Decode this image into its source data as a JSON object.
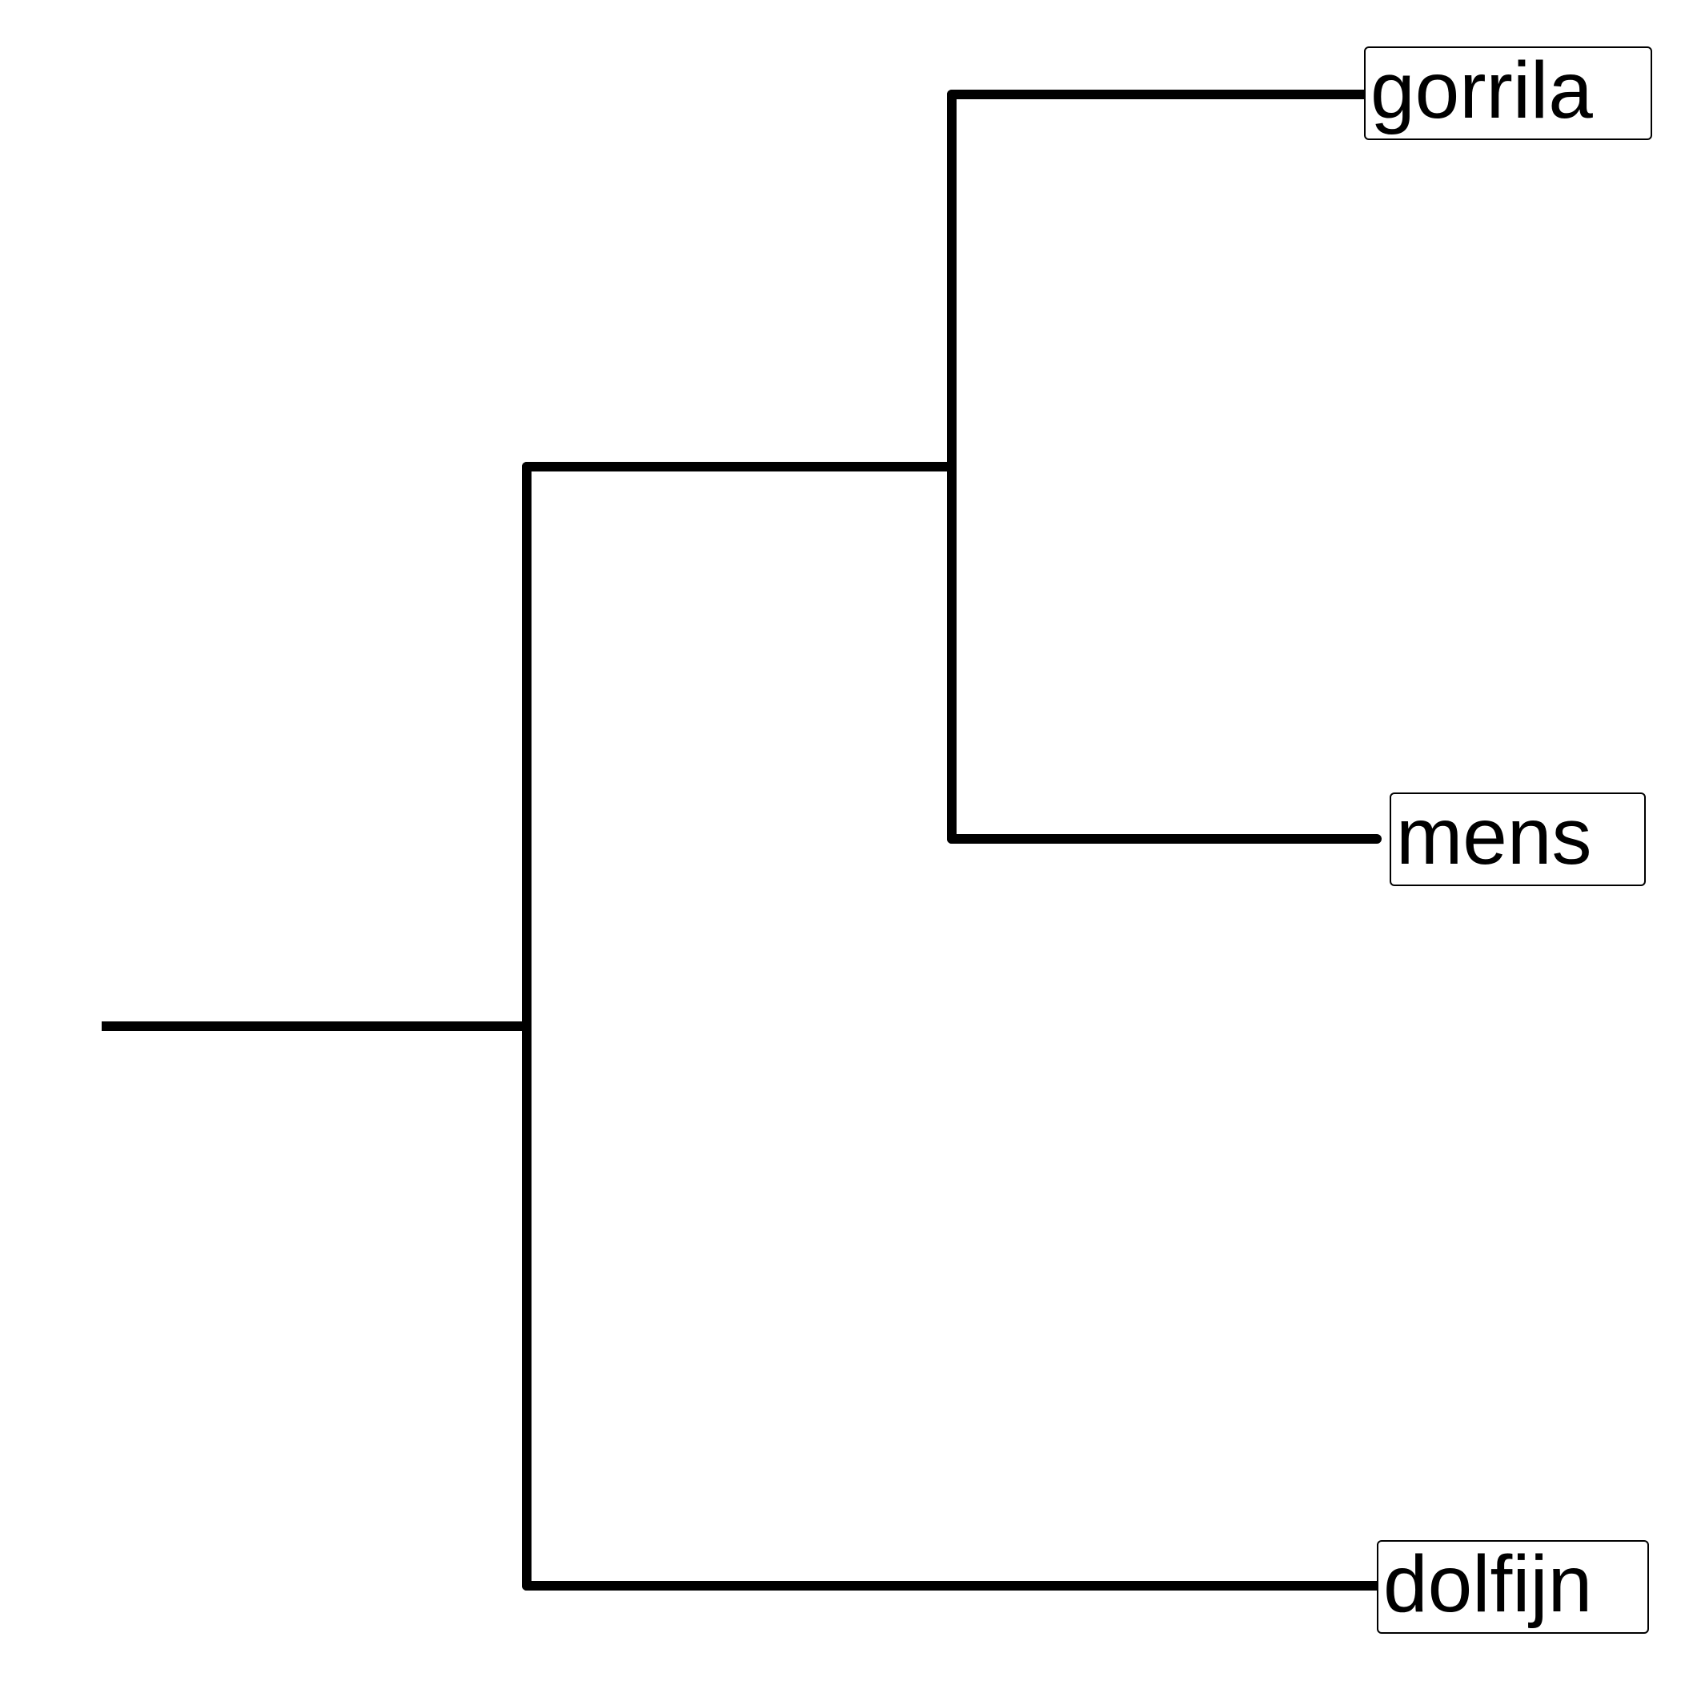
{
  "tree": {
    "taxa": [
      {
        "id": "gorilla",
        "label": "gorrila"
      },
      {
        "id": "human",
        "label": "mens"
      },
      {
        "id": "dolphin",
        "label": "dolfijn"
      }
    ],
    "topology": "((gorrila,mens),dolfijn)",
    "line_color": "#000000",
    "label_border_color": "#000000"
  }
}
